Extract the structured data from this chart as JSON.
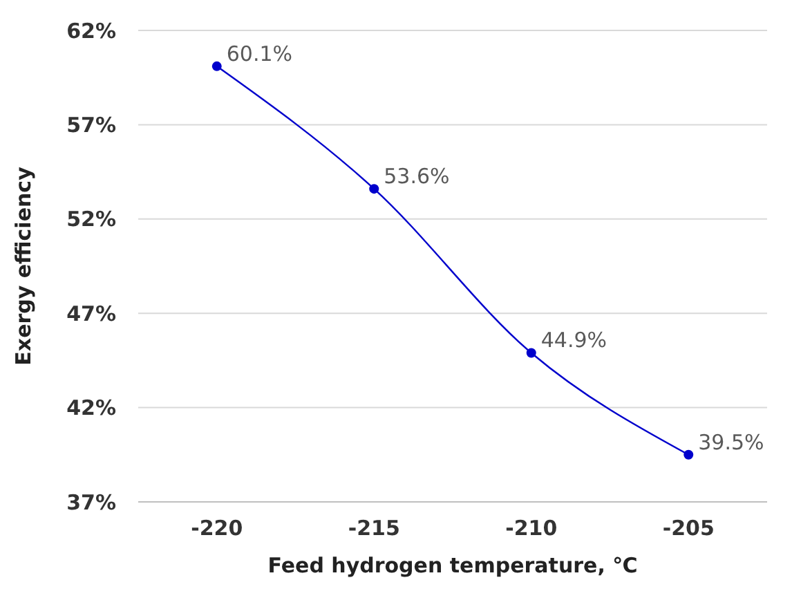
{
  "chart_data": {
    "type": "line",
    "xlabel": "Feed hydrogen temperature, ℃",
    "ylabel": "Exergy efficiency",
    "x": [
      -220,
      -215,
      -210,
      -205
    ],
    "series": [
      {
        "color": "#0000cc",
        "values": [
          60.1,
          53.6,
          44.9,
          39.5
        ],
        "value_labels": [
          "60.1%",
          "53.6%",
          "44.9%",
          "39.5%"
        ]
      }
    ],
    "xlim": [
      -222.5,
      -202.5
    ],
    "xticks": [
      -220,
      -215,
      -210,
      -205
    ],
    "ylim": [
      37,
      62
    ],
    "yticks": [
      {
        "value": 37,
        "label": "37%"
      },
      {
        "value": 42,
        "label": "42%"
      },
      {
        "value": 47,
        "label": "47%"
      },
      {
        "value": 52,
        "label": "52%"
      },
      {
        "value": 57,
        "label": "57%"
      },
      {
        "value": 62,
        "label": "62%"
      }
    ],
    "grid": "y",
    "marker": "circle",
    "line_style": "solid"
  }
}
